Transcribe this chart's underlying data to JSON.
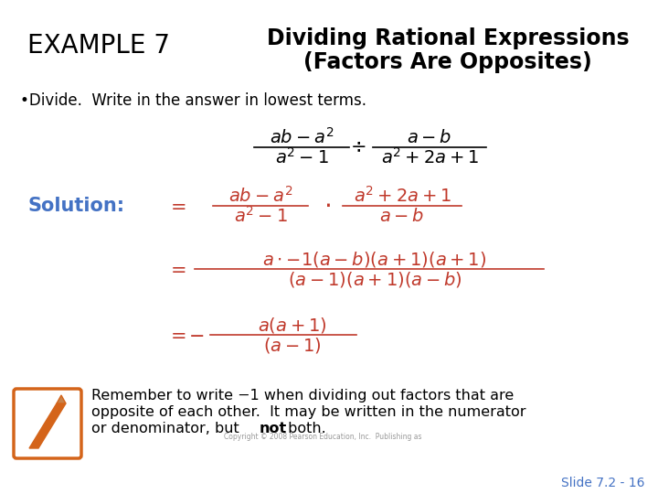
{
  "bg_color": "#ffffff",
  "title_example": "EXAMPLE 7",
  "title_line1": "Dividing Rational Expressions",
  "title_line2": "(Factors Are Opposites)",
  "bullet": "•Divide.  Write in the answer in lowest terms.",
  "solution_label": "Solution:",
  "solution_color": "#4472c4",
  "math_color": "#c0392b",
  "black": "#000000",
  "slide_num": "Slide 7.2 - 16",
  "pencil_color": "#d4641a",
  "box_edge_color": "#d4641a",
  "copyright": "Copyright © 2008 Pearson Education, Inc.  Publishing as"
}
